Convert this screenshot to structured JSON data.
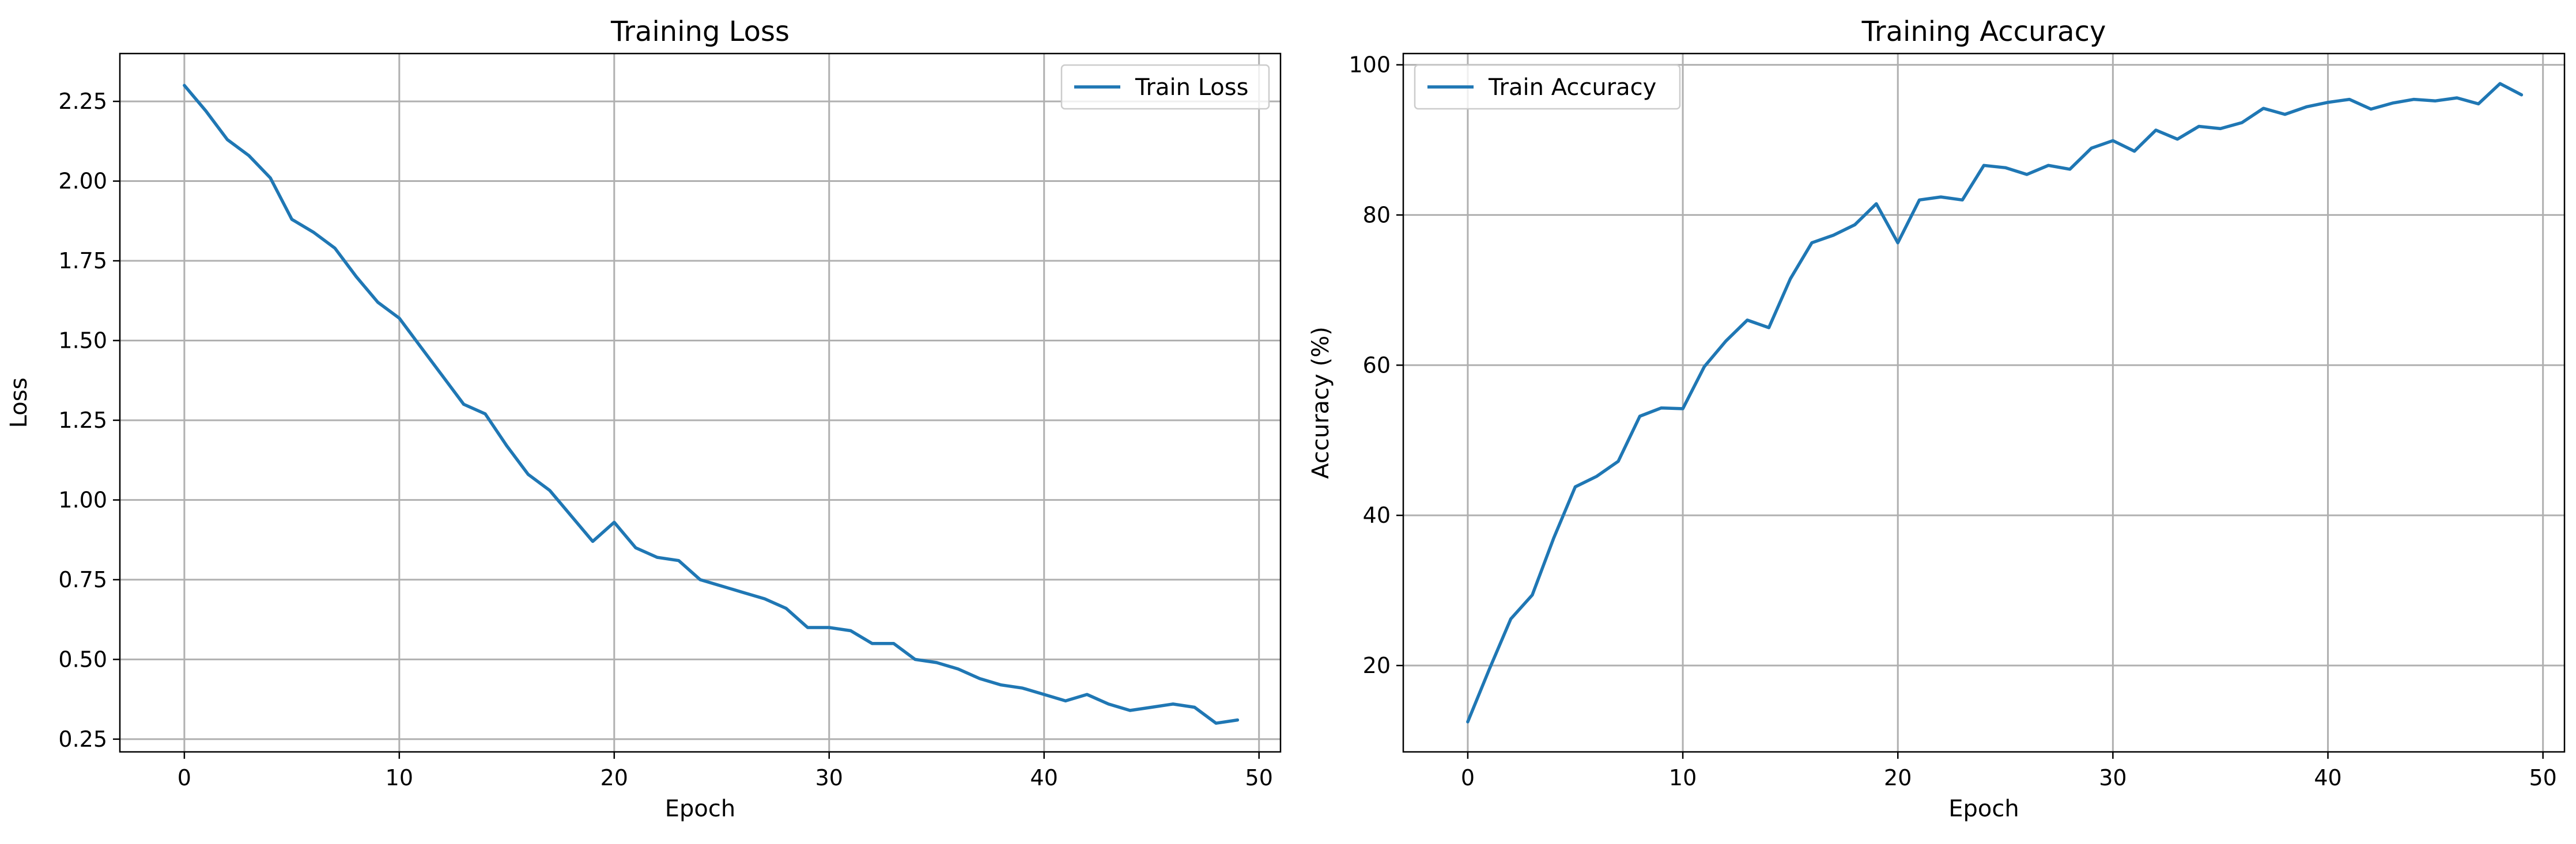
{
  "chart_data": [
    {
      "type": "line",
      "title": "Training Loss",
      "xlabel": "Epoch",
      "ylabel": "Loss",
      "xlim": [
        -3,
        51
      ],
      "ylim": [
        0.21,
        2.4
      ],
      "xticks": [
        0,
        10,
        20,
        30,
        40,
        50
      ],
      "xtick_labels": [
        "0",
        "10",
        "20",
        "30",
        "40",
        "50"
      ],
      "yticks": [
        0.25,
        0.5,
        0.75,
        1.0,
        1.25,
        1.5,
        1.75,
        2.0,
        2.25
      ],
      "ytick_labels": [
        "0.25",
        "0.50",
        "0.75",
        "1.00",
        "1.25",
        "1.50",
        "1.75",
        "2.00",
        "2.25"
      ],
      "grid": true,
      "legend_position": "top-right",
      "color": "#1f77b4",
      "series": [
        {
          "name": "Train Loss",
          "x": [
            0,
            1,
            2,
            3,
            4,
            5,
            6,
            7,
            8,
            9,
            10,
            11,
            12,
            13,
            14,
            15,
            16,
            17,
            18,
            19,
            20,
            21,
            22,
            23,
            24,
            25,
            26,
            27,
            28,
            29,
            30,
            31,
            32,
            33,
            34,
            35,
            36,
            37,
            38,
            39,
            40,
            41,
            42,
            43,
            44,
            45,
            46,
            47,
            48,
            49
          ],
          "y": [
            2.3,
            2.22,
            2.13,
            2.08,
            2.01,
            1.88,
            1.84,
            1.79,
            1.7,
            1.62,
            1.57,
            1.48,
            1.39,
            1.3,
            1.27,
            1.17,
            1.08,
            1.03,
            0.95,
            0.87,
            0.93,
            0.85,
            0.82,
            0.81,
            0.75,
            0.73,
            0.71,
            0.69,
            0.66,
            0.6,
            0.6,
            0.59,
            0.55,
            0.55,
            0.5,
            0.49,
            0.47,
            0.44,
            0.42,
            0.41,
            0.39,
            0.37,
            0.39,
            0.36,
            0.34,
            0.35,
            0.36,
            0.35,
            0.3,
            0.31
          ]
        }
      ]
    },
    {
      "type": "line",
      "title": "Training Accuracy",
      "xlabel": "Epoch",
      "ylabel": "Accuracy (%)",
      "xlim": [
        -3,
        51
      ],
      "ylim": [
        8.5,
        101.5
      ],
      "xticks": [
        0,
        10,
        20,
        30,
        40,
        50
      ],
      "xtick_labels": [
        "0",
        "10",
        "20",
        "30",
        "40",
        "50"
      ],
      "yticks": [
        20,
        40,
        60,
        80,
        100
      ],
      "ytick_labels": [
        "20",
        "40",
        "60",
        "80",
        "100"
      ],
      "grid": true,
      "legend_position": "top-left",
      "color": "#1f77b4",
      "series": [
        {
          "name": "Train Accuracy",
          "x": [
            0,
            1,
            2,
            3,
            4,
            5,
            6,
            7,
            8,
            9,
            10,
            11,
            12,
            13,
            14,
            15,
            16,
            17,
            18,
            19,
            20,
            21,
            22,
            23,
            24,
            25,
            26,
            27,
            28,
            29,
            30,
            31,
            32,
            33,
            34,
            35,
            36,
            37,
            38,
            39,
            40,
            41,
            42,
            43,
            44,
            45,
            46,
            47,
            48,
            49
          ],
          "y": [
            12.5,
            19.5,
            26.2,
            29.4,
            37.0,
            43.8,
            45.2,
            47.2,
            53.2,
            54.3,
            54.2,
            59.8,
            63.2,
            66.0,
            65.0,
            71.5,
            76.3,
            77.3,
            78.7,
            81.5,
            76.3,
            82.0,
            82.4,
            82.0,
            86.6,
            86.3,
            85.4,
            86.6,
            86.1,
            88.9,
            89.9,
            88.5,
            91.3,
            90.1,
            91.8,
            91.5,
            92.3,
            94.2,
            93.4,
            94.4,
            95.0,
            95.4,
            94.1,
            94.9,
            95.4,
            95.2,
            95.6,
            94.8,
            97.5,
            96.0
          ]
        }
      ]
    }
  ]
}
